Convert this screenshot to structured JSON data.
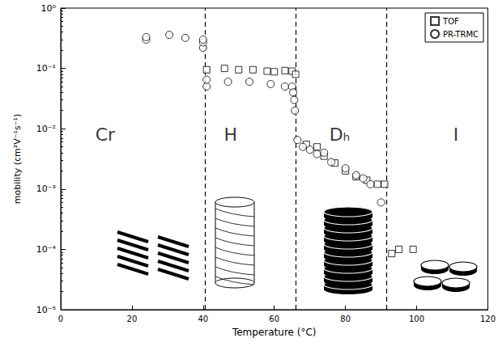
{
  "chart_data": {
    "type": "scatter",
    "log": "y",
    "grid": false,
    "legend": "top-right",
    "x_label": "Temperature (°C)",
    "y_label": "mobility (cm²V⁻¹s⁻¹)",
    "xlim": [
      0,
      120
    ],
    "xticks": [
      0,
      20,
      40,
      60,
      80,
      100,
      120
    ],
    "ylim": [
      1e-05,
      1
    ],
    "yticks": [
      {
        "value": 1e-05,
        "label": "10⁻⁵"
      },
      {
        "value": 0.0001,
        "label": "10⁻⁴"
      },
      {
        "value": 0.001,
        "label": "10⁻³"
      },
      {
        "value": 0.01,
        "label": "10⁻²"
      },
      {
        "value": 0.1,
        "label": "10⁻¹"
      },
      {
        "value": 1,
        "label": "10⁰"
      }
    ],
    "phase_boundaries": [
      40.5,
      66,
      91.5
    ],
    "annotations": [
      {
        "text": "Cr",
        "x": 12.5,
        "y": 0.008
      },
      {
        "text": "H",
        "x": 47.7,
        "y": 0.008
      },
      {
        "text": "Dₕ",
        "x": 78.4,
        "y": 0.008
      },
      {
        "text": "I",
        "x": 111,
        "y": 0.008
      }
    ],
    "series": [
      {
        "name": "TOF",
        "color": "#000000",
        "marker": "square",
        "x": [
          41,
          46,
          50,
          54,
          58,
          60,
          63,
          65,
          66,
          69,
          72,
          74,
          77,
          80,
          83,
          86,
          89,
          91,
          93,
          95,
          99
        ],
        "values": [
          0.095,
          0.1,
          0.095,
          0.095,
          0.09,
          0.088,
          0.092,
          0.09,
          0.08,
          0.0055,
          0.005,
          0.0035,
          0.0027,
          0.002,
          0.0016,
          0.0014,
          0.0012,
          0.0012,
          8.5e-05,
          0.0001,
          0.0001
        ]
      },
      {
        "name": "PR-TRMC",
        "color": "#000000",
        "marker": "circle",
        "x": [
          24,
          24,
          30.5,
          35,
          40,
          40,
          40,
          41,
          41,
          47,
          53,
          59,
          63,
          65,
          65.3,
          65.6,
          65.8,
          66.5,
          68,
          70,
          72,
          74,
          76,
          80,
          83,
          85,
          87,
          90
        ],
        "values": [
          0.3,
          0.33,
          0.36,
          0.32,
          0.22,
          0.27,
          0.3,
          0.05,
          0.065,
          0.06,
          0.06,
          0.055,
          0.05,
          0.05,
          0.04,
          0.03,
          0.02,
          0.0065,
          0.005,
          0.0045,
          0.0038,
          0.004,
          0.0028,
          0.0022,
          0.0017,
          0.0015,
          0.0012,
          0.0006
        ]
      }
    ]
  }
}
